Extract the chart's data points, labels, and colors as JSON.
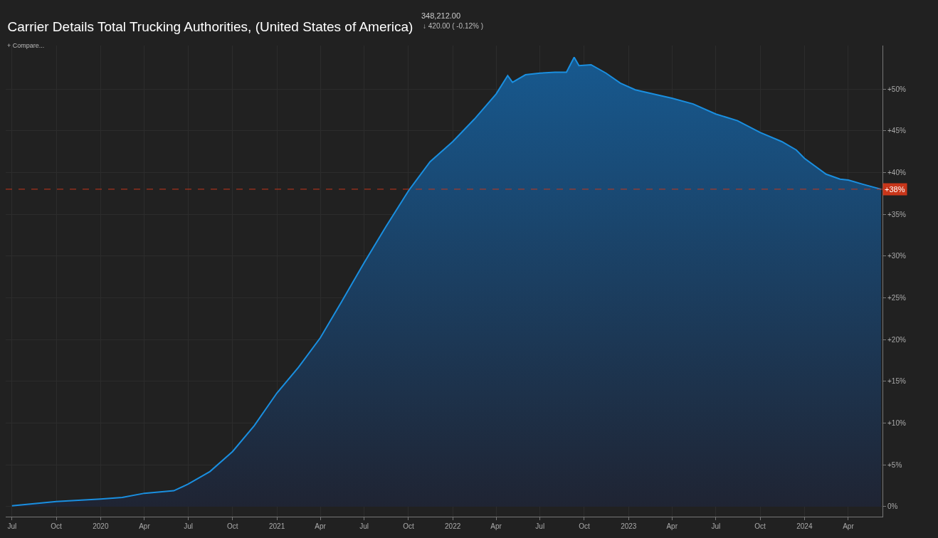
{
  "chart_data": {
    "type": "area",
    "title": "Carrier Details Total Trucking Authorities, (United States of America)",
    "annotations": [
      "348,212.00",
      "↓ 420.00 ( -0.12% )",
      "+ Compare..."
    ],
    "x": [
      "2019-07-01",
      "2019-10-01",
      "2020-01-01",
      "2020-02-15",
      "2020-04-01",
      "2020-06-01",
      "2020-07-01",
      "2020-08-15",
      "2020-10-01",
      "2020-11-15",
      "2021-01-01",
      "2021-02-15",
      "2021-04-01",
      "2021-05-15",
      "2021-07-01",
      "2021-08-15",
      "2021-10-01",
      "2021-11-15",
      "2022-01-01",
      "2022-02-15",
      "2022-04-01",
      "2022-04-25",
      "2022-05-05",
      "2022-06-01",
      "2022-07-01",
      "2022-08-01",
      "2022-08-25",
      "2022-09-10",
      "2022-09-20",
      "2022-10-15",
      "2022-11-15",
      "2022-12-15",
      "2023-01-15",
      "2023-03-01",
      "2023-04-01",
      "2023-05-15",
      "2023-07-01",
      "2023-08-15",
      "2023-10-01",
      "2023-11-15",
      "2023-12-15",
      "2024-01-01",
      "2024-02-15",
      "2024-03-15",
      "2024-04-01",
      "2024-05-01",
      "2024-06-08"
    ],
    "series": [
      {
        "color": "#1a8fe0",
        "values": [
          0.1,
          0.6,
          0.9,
          1.1,
          1.6,
          1.9,
          2.7,
          4.2,
          6.6,
          9.7,
          13.6,
          16.7,
          20.2,
          24.5,
          29.2,
          33.5,
          37.8,
          41.3,
          43.7,
          46.4,
          49.4,
          51.6,
          50.8,
          51.7,
          51.9,
          52.0,
          52.0,
          53.8,
          52.8,
          52.9,
          51.9,
          50.7,
          49.9,
          49.3,
          48.9,
          48.2,
          47.0,
          46.2,
          44.8,
          43.7,
          42.7,
          41.7,
          39.8,
          39.2,
          39.1,
          38.6,
          38.0
        ]
      }
    ],
    "xlim": [
      "2019-06-18",
      "2024-06-11"
    ],
    "xticks": [
      {
        "value": "2019-07-01",
        "label": "Jul"
      },
      {
        "value": "2019-10-01",
        "label": "Oct"
      },
      {
        "value": "2020-01-01",
        "label": "2020"
      },
      {
        "value": "2020-04-01",
        "label": "Apr"
      },
      {
        "value": "2020-07-01",
        "label": "Jul"
      },
      {
        "value": "2020-10-01",
        "label": "Oct"
      },
      {
        "value": "2021-01-01",
        "label": "2021"
      },
      {
        "value": "2021-04-01",
        "label": "Apr"
      },
      {
        "value": "2021-07-01",
        "label": "Jul"
      },
      {
        "value": "2021-10-01",
        "label": "Oct"
      },
      {
        "value": "2022-01-01",
        "label": "2022"
      },
      {
        "value": "2022-04-01",
        "label": "Apr"
      },
      {
        "value": "2022-07-01",
        "label": "Jul"
      },
      {
        "value": "2022-10-01",
        "label": "Oct"
      },
      {
        "value": "2023-01-01",
        "label": "2023"
      },
      {
        "value": "2023-04-01",
        "label": "Apr"
      },
      {
        "value": "2023-07-01",
        "label": "Jul"
      },
      {
        "value": "2023-10-01",
        "label": "Oct"
      },
      {
        "value": "2024-01-01",
        "label": "2024"
      },
      {
        "value": "2024-04-01",
        "label": "Apr"
      }
    ],
    "ylim": [
      -1.2,
      55.2
    ],
    "yticks": [
      {
        "value": 0,
        "label": "0%"
      },
      {
        "value": 5,
        "label": "+5%"
      },
      {
        "value": 10,
        "label": "+10%"
      },
      {
        "value": 15,
        "label": "+15%"
      },
      {
        "value": 20,
        "label": "+20%"
      },
      {
        "value": 25,
        "label": "+25%"
      },
      {
        "value": 30,
        "label": "+30%"
      },
      {
        "value": 35,
        "label": "+35%"
      },
      {
        "value": 40,
        "label": "+40%"
      },
      {
        "value": 45,
        "label": "+45%"
      },
      {
        "value": 50,
        "label": "+50%"
      }
    ],
    "ref_lines": [
      {
        "axis": "y",
        "value": 38,
        "label": "+38%",
        "color": "#c8361a",
        "line_style": "dashed"
      }
    ],
    "grid": true,
    "marker": "none",
    "line_style": "solid"
  }
}
